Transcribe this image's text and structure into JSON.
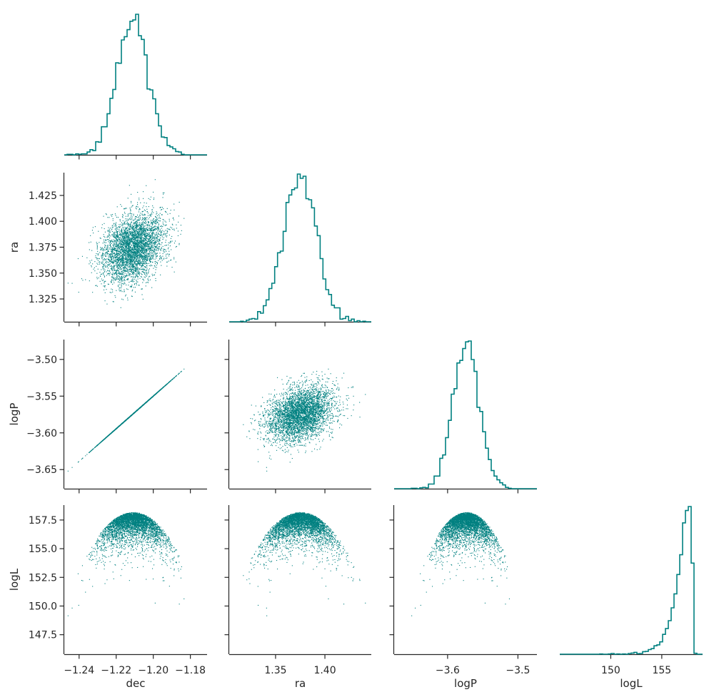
{
  "chart_data": {
    "type": "scatter",
    "kind": "corner-plot",
    "series_color": "#008080",
    "params": [
      "dec",
      "ra",
      "logP",
      "logL"
    ],
    "axis_labels": {
      "x": [
        "dec",
        "ra",
        "logP",
        "logL"
      ],
      "y": [
        "ra",
        "logP",
        "logL"
      ]
    },
    "ranges": {
      "dec": [
        -1.248,
        -1.171
      ],
      "ra": [
        1.303,
        1.447
      ],
      "logP": [
        -3.676,
        -3.473
      ],
      "logL": [
        145.8,
        158.8
      ],
      "logL_hist_x": [
        145.0,
        159.0
      ]
    },
    "ticks": {
      "dec": {
        "values": [
          -1.24,
          -1.22,
          -1.2,
          -1.18
        ],
        "labels": [
          "−1.24",
          "−1.22",
          "−1.20",
          "−1.18"
        ]
      },
      "ra_x": {
        "values": [
          1.35,
          1.4
        ],
        "labels": [
          "1.35",
          "1.40"
        ]
      },
      "ra_y": {
        "values": [
          1.325,
          1.35,
          1.375,
          1.4,
          1.425
        ],
        "labels": [
          "1.325",
          "1.350",
          "1.375",
          "1.400",
          "1.425"
        ]
      },
      "logP_x": {
        "values": [
          -3.6,
          -3.5
        ],
        "labels": [
          "−3.6",
          "−3.5"
        ]
      },
      "logP_y": {
        "values": [
          -3.65,
          -3.6,
          -3.55,
          -3.5
        ],
        "labels": [
          "−3.65",
          "−3.60",
          "−3.55",
          "−3.50"
        ]
      },
      "logL_x": {
        "values": [
          150,
          155
        ],
        "labels": [
          "150",
          "155"
        ]
      },
      "logL_y": {
        "values": [
          147.5,
          150,
          152.5,
          155,
          157.5
        ],
        "labels": [
          "147.5",
          "150.0",
          "152.5",
          "155.0",
          "157.5"
        ]
      }
    },
    "marginals": {
      "dec": {
        "mean": -1.211,
        "sd": 0.0085
      },
      "ra": {
        "mean": 1.375,
        "sd": 0.0165
      },
      "logP": {
        "mean": -3.573,
        "sd": 0.023
      },
      "logL": {
        "max": 158.2,
        "tail": "left-skewed"
      }
    },
    "relations": {
      "logP_vs_dec": {
        "slope": 2.22,
        "intercept": -0.885,
        "correlation": 1.0
      },
      "ra_vs_dec_correlation": 0.3,
      "logP_vs_ra_correlation": 0.3,
      "logL": "parabolic envelope peaking at 158.2 near the centre of each parameter"
    },
    "n_samples": 4000,
    "grid": false,
    "legend": "none"
  }
}
